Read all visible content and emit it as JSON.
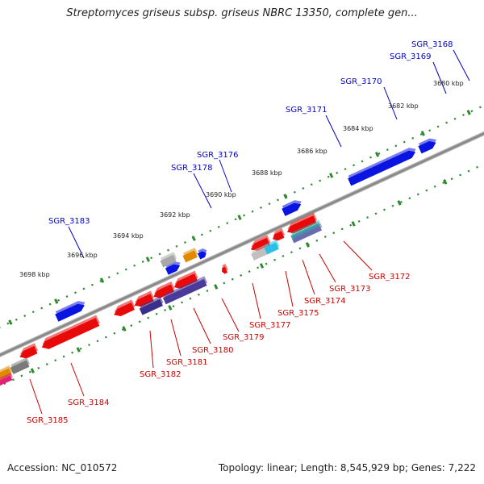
{
  "title": "Streptomyces griseus subsp. griseus NBRC 13350, complete gen...",
  "footer": {
    "accession": "Accession: NC_010572",
    "topology": "Topology: linear; Length: 8,545,929 bp; Genes: 7,222"
  },
  "colors": {
    "forward_label": "#0000cc",
    "reverse_label": "#cc0000",
    "forward_gene": "#0a14e0",
    "reverse_gene": "#e80a0a",
    "dotted_track": "#2d8a2d",
    "backbone": "#8c8c8c"
  },
  "scale_labels": [
    "3680 kbp",
    "3682 kbp",
    "3684 kbp",
    "3686 kbp",
    "3688 kbp",
    "3690 kbp",
    "3692 kbp",
    "3694 kbp",
    "3696 kbp",
    "3698 kbp"
  ],
  "forward_labels": [
    "SGR_3168",
    "SGR_3169",
    "SGR_3170",
    "SGR_3171",
    "SGR_3176",
    "SGR_3178",
    "SGR_3183"
  ],
  "reverse_labels": [
    "SGR_3172",
    "SGR_3173",
    "SGR_3174",
    "SGR_3175",
    "SGR_3177",
    "SGR_3179",
    "SGR_3180",
    "SGR_3181",
    "SGR_3182",
    "SGR_3184",
    "SGR_3185"
  ]
}
